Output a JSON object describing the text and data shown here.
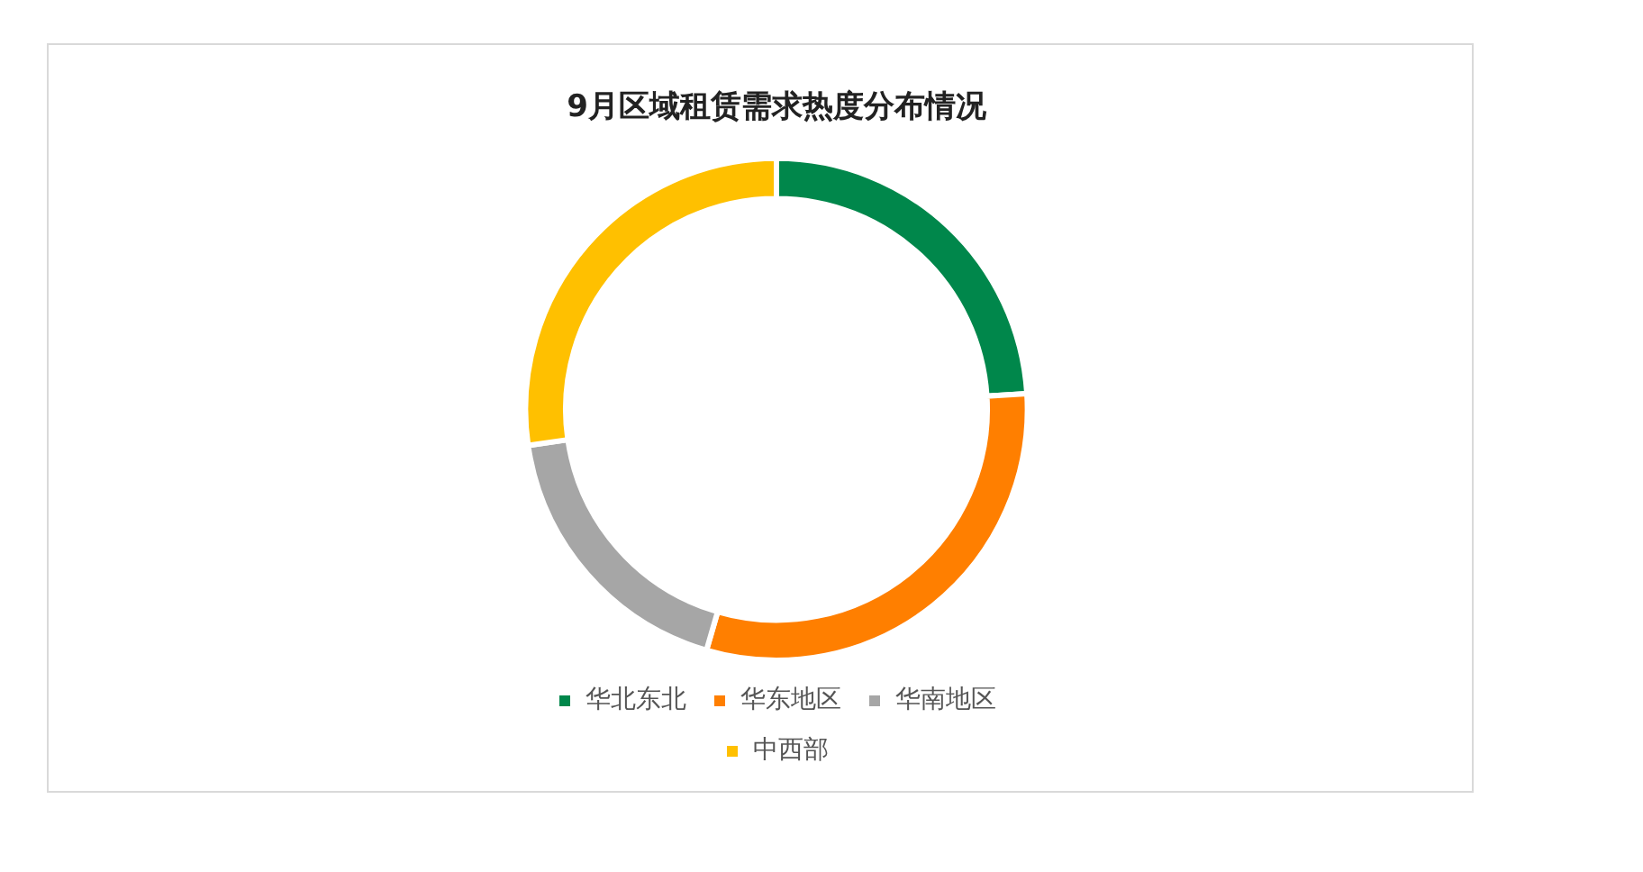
{
  "chart_data": {
    "type": "donut",
    "title": "9月区域租赁需求热度分布情况",
    "categories": [
      "华北东北",
      "华东地区",
      "华南地区",
      "中西部"
    ],
    "values": [
      24,
      30.5,
      18.2,
      27.3
    ],
    "colors": [
      "#00874b",
      "#ff7f00",
      "#a6a6a6",
      "#ffc000"
    ],
    "legend": "bottom"
  }
}
